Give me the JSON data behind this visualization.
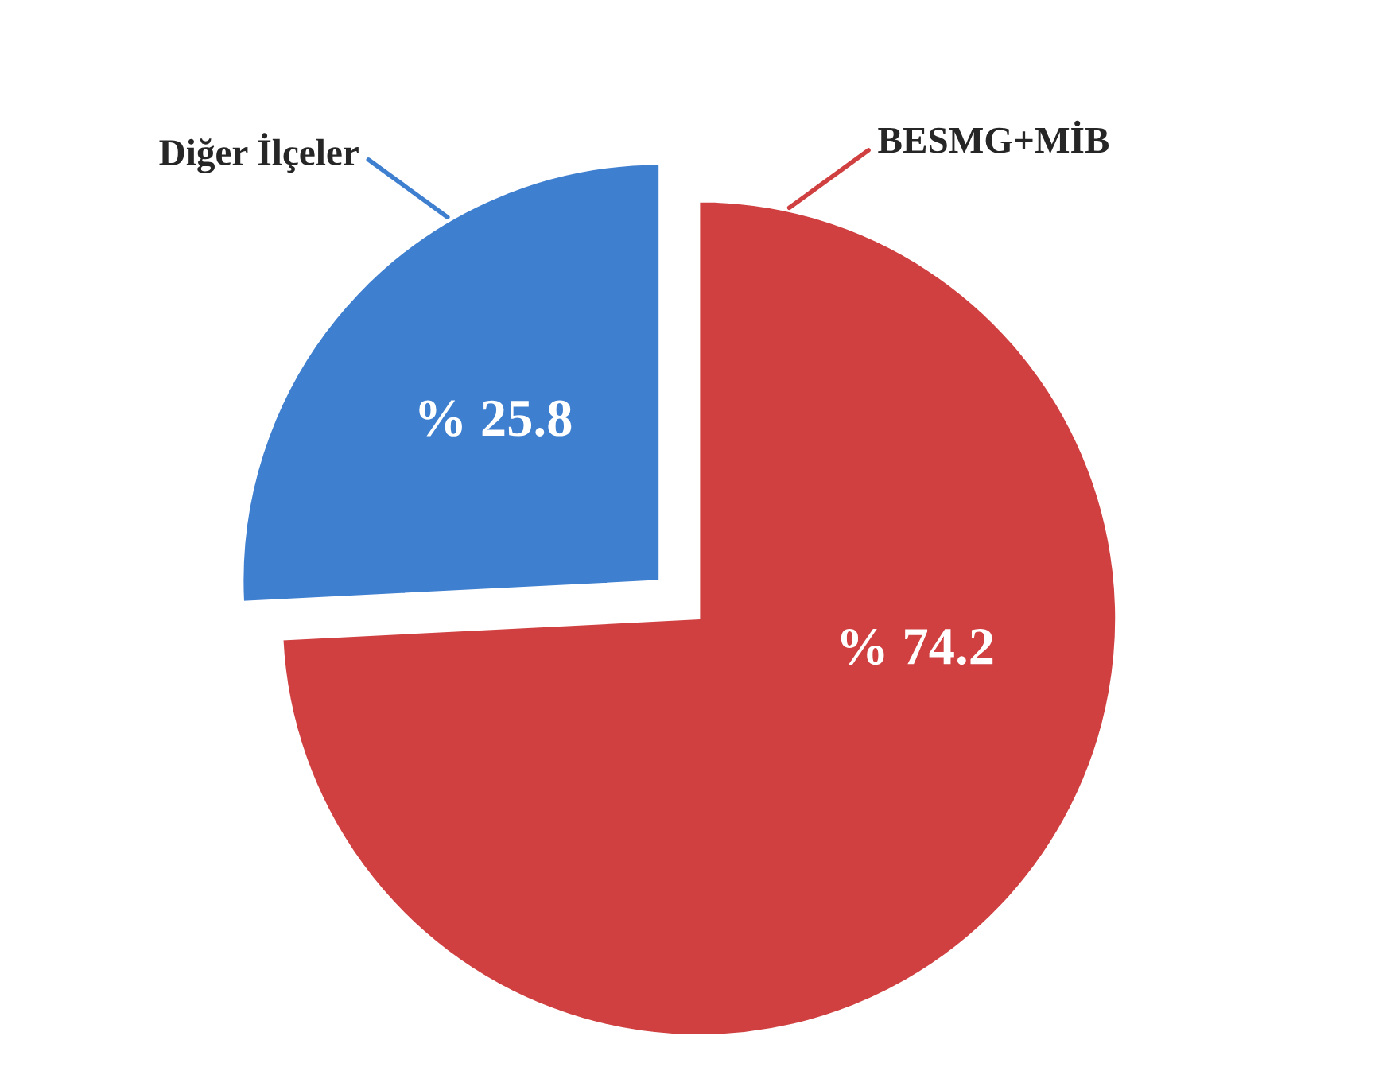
{
  "chart_data": {
    "type": "pie",
    "categories": [
      "BESMG+MİB",
      "Diğer İlçeler"
    ],
    "values": [
      74.2,
      25.8
    ],
    "colors": [
      "#d04040",
      "#3f7fcf"
    ],
    "value_labels": [
      "% 74.2",
      "% 25.8"
    ],
    "legend": false
  }
}
